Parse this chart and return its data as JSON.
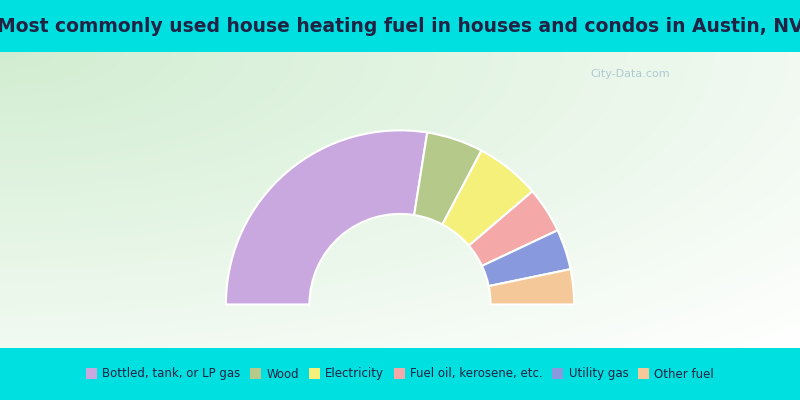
{
  "title": "Most commonly used house heating fuel in houses and condos in Austin, NV",
  "title_color": "#222244",
  "background_color": "#00e0e0",
  "segments": [
    {
      "label": "Bottled, tank, or LP gas",
      "value": 55.0,
      "color": "#c9a8e0"
    },
    {
      "label": "Wood",
      "value": 10.5,
      "color": "#b5c98a"
    },
    {
      "label": "Electricity",
      "value": 12.0,
      "color": "#f5f07a"
    },
    {
      "label": "Fuel oil, kerosene, etc.",
      "value": 8.5,
      "color": "#f4a8a8"
    },
    {
      "label": "Utility gas",
      "value": 7.5,
      "color": "#8899dd"
    },
    {
      "label": "Other fuel",
      "value": 6.5,
      "color": "#f5c89a"
    }
  ],
  "legend_colors": [
    "#c9a8e0",
    "#b5c98a",
    "#f5f07a",
    "#f4a8a8",
    "#8899dd",
    "#f5c89a"
  ],
  "legend_labels": [
    "Bottled, tank, or LP gas",
    "Wood",
    "Electricity",
    "Fuel oil, kerosene, etc.",
    "Utility gas",
    "Other fuel"
  ],
  "watermark": "City-Data.com",
  "title_fontsize": 13.5,
  "legend_fontsize": 8.5
}
